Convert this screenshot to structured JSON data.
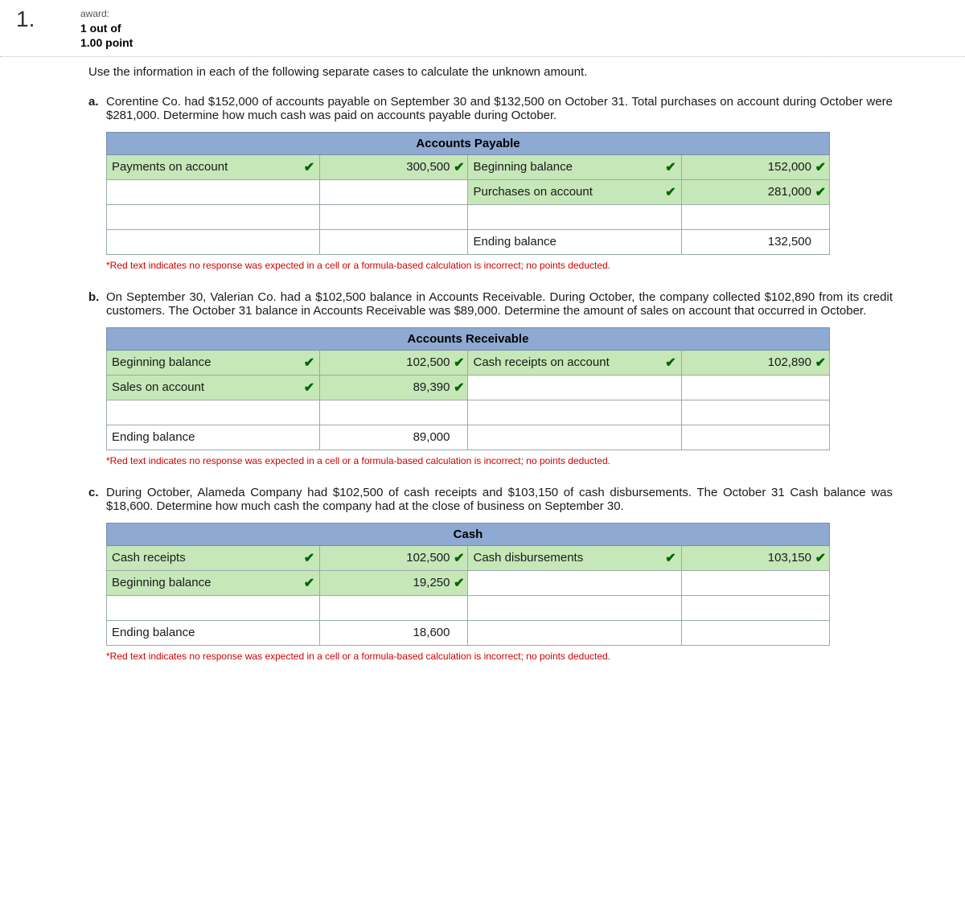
{
  "question_number": "1.",
  "award_label": "award:",
  "award_score": "1 out of",
  "award_points": "1.00 point",
  "intro": "Use the information in each of the following separate cases to calculate the unknown amount.",
  "footnote": "*Red text indicates no response was expected in a cell or a formula-based calculation is incorrect; no points deducted.",
  "part_a": {
    "label": "a.",
    "text": "Corentine Co. had $152,000 of accounts payable on September 30 and $132,500 on October 31. Total purchases on account during October were $281,000. Determine how much cash was paid on accounts payable during October.",
    "table_title": "Accounts Payable",
    "left": {
      "r1_label": "Payments on account",
      "r1_val": "300,500",
      "r2_label": "",
      "r2_val": "",
      "r3_label": "",
      "r3_val": "",
      "r4_label": "",
      "r4_val": ""
    },
    "right": {
      "r1_label": "Beginning balance",
      "r1_val": "152,000",
      "r2_label": "Purchases on account",
      "r2_val": "281,000",
      "r3_label": "",
      "r3_val": "",
      "r4_label": "Ending balance",
      "r4_val": "132,500"
    }
  },
  "part_b": {
    "label": "b.",
    "text": "On September 30, Valerian Co. had a $102,500 balance in Accounts Receivable. During October, the company collected $102,890 from its credit customers. The October 31 balance in Accounts Receivable was $89,000. Determine the amount of sales on account that occurred in October.",
    "table_title": "Accounts Receivable",
    "left": {
      "r1_label": "Beginning balance",
      "r1_val": "102,500",
      "r2_label": "Sales on account",
      "r2_val": "89,390",
      "r3_label": "",
      "r3_val": "",
      "r4_label": "Ending balance",
      "r4_val": "89,000"
    },
    "right": {
      "r1_label": "Cash receipts on account",
      "r1_val": "102,890",
      "r2_label": "",
      "r2_val": "",
      "r3_label": "",
      "r3_val": "",
      "r4_label": "",
      "r4_val": ""
    }
  },
  "part_c": {
    "label": "c.",
    "text": "During October, Alameda Company had $102,500 of cash receipts and $103,150 of cash disbursements. The October 31 Cash balance was $18,600. Determine how much cash the company had at the close of business on September 30.",
    "table_title": "Cash",
    "left": {
      "r1_label": "Cash receipts",
      "r1_val": "102,500",
      "r2_label": "Beginning balance",
      "r2_val": "19,250",
      "r3_label": "",
      "r3_val": "",
      "r4_label": "Ending balance",
      "r4_val": "18,600"
    },
    "right": {
      "r1_label": "Cash disbursements",
      "r1_val": "103,150",
      "r2_label": "",
      "r2_val": "",
      "r3_label": "",
      "r3_val": "",
      "r4_label": "",
      "r4_val": ""
    }
  }
}
